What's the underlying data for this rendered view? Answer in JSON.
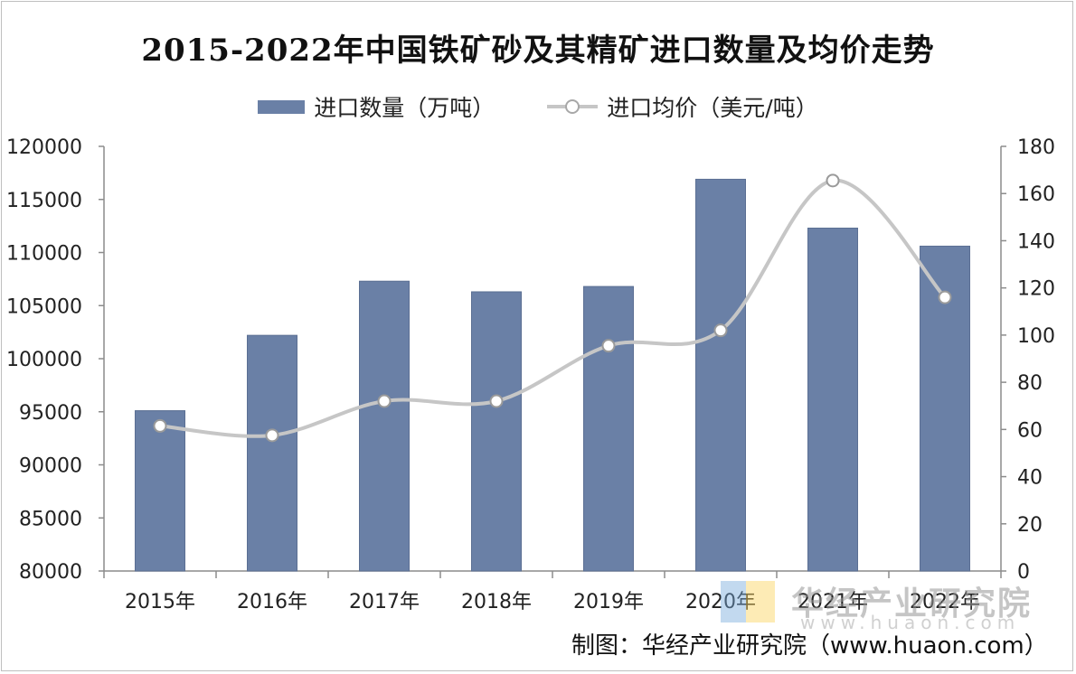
{
  "chart_data": {
    "type": "bar+line",
    "title": "2015-2022年中国铁矿砂及其精矿进口数量及均价走势",
    "categories": [
      "2015年",
      "2016年",
      "2017年",
      "2018年",
      "2019年",
      "2020年",
      "2021年",
      "2022年"
    ],
    "series": [
      {
        "name": "进口数量（万吨）",
        "type": "bar",
        "axis": "left",
        "color": "#6a80a6",
        "values": [
          95100,
          102200,
          107300,
          106300,
          106800,
          116900,
          112300,
          110600
        ]
      },
      {
        "name": "进口均价（美元/吨）",
        "type": "line",
        "axis": "right",
        "color": "#c6c6c6",
        "values": [
          61.5,
          57.5,
          72,
          72,
          95.5,
          102,
          165.5,
          116
        ]
      }
    ],
    "y_left": {
      "ylim": [
        80000,
        120000
      ],
      "ticks": [
        "80000",
        "85000",
        "90000",
        "95000",
        "100000",
        "105000",
        "110000",
        "115000",
        "120000"
      ]
    },
    "y_right": {
      "ylim": [
        0,
        180
      ],
      "ticks": [
        "0",
        "20",
        "40",
        "60",
        "80",
        "100",
        "120",
        "140",
        "160",
        "180"
      ]
    },
    "legend_position": "top-center",
    "grid": false
  },
  "watermark": {
    "text": "华经产业研究院",
    "url": "www.huaon.com"
  },
  "source": "制图：华经产业研究院（www.huaon.com）"
}
